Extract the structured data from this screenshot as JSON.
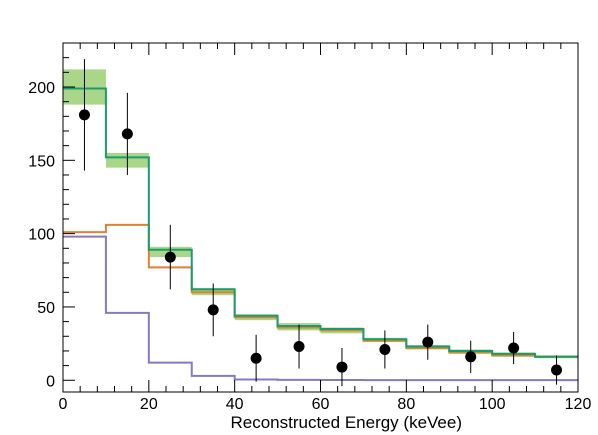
{
  "chart_data": {
    "type": "line",
    "title": "",
    "xlabel": "Reconstructed Energy (keVee)",
    "ylabel": "",
    "xlim": [
      0,
      120
    ],
    "ylim": [
      -8,
      230
    ],
    "grid": false,
    "legend": "none",
    "x_ticks": [
      0,
      20,
      40,
      60,
      80,
      100,
      120
    ],
    "y_ticks": [
      0,
      50,
      100,
      150,
      200
    ],
    "bin_edges": [
      0,
      10,
      20,
      30,
      40,
      50,
      60,
      70,
      80,
      90,
      100,
      110,
      120
    ],
    "series": [
      {
        "kind": "step",
        "color": "#e08030",
        "values": [
          101,
          106,
          77,
          60,
          43,
          36,
          34,
          27,
          22,
          19,
          17,
          16
        ]
      },
      {
        "kind": "step",
        "color": "#8878c0",
        "values": [
          98,
          46,
          12,
          3,
          0.5,
          0.3,
          0.2,
          0.1,
          0.1,
          0.1,
          0.1,
          0.1
        ]
      },
      {
        "kind": "step",
        "color": "#1a9c70",
        "values": [
          199,
          152,
          89,
          62,
          44,
          37,
          35,
          28,
          23,
          20,
          18,
          16
        ]
      },
      {
        "kind": "band",
        "color": "#8cc860",
        "low": [
          188,
          145,
          84,
          58,
          41,
          34,
          32,
          26,
          21,
          18,
          16,
          15
        ],
        "high": [
          212,
          155,
          91,
          63,
          45,
          39,
          36,
          29,
          24,
          21,
          19,
          17
        ]
      },
      {
        "kind": "points",
        "color": "#000000",
        "x": [
          5,
          15,
          25,
          35,
          45,
          55,
          65,
          75,
          85,
          95,
          105,
          115
        ],
        "y": [
          181,
          168,
          84,
          48,
          15,
          23,
          9,
          21,
          26,
          16,
          22,
          7
        ],
        "err": [
          38,
          28,
          22,
          18,
          16,
          15,
          13,
          13,
          12,
          11,
          11,
          10
        ]
      }
    ]
  }
}
